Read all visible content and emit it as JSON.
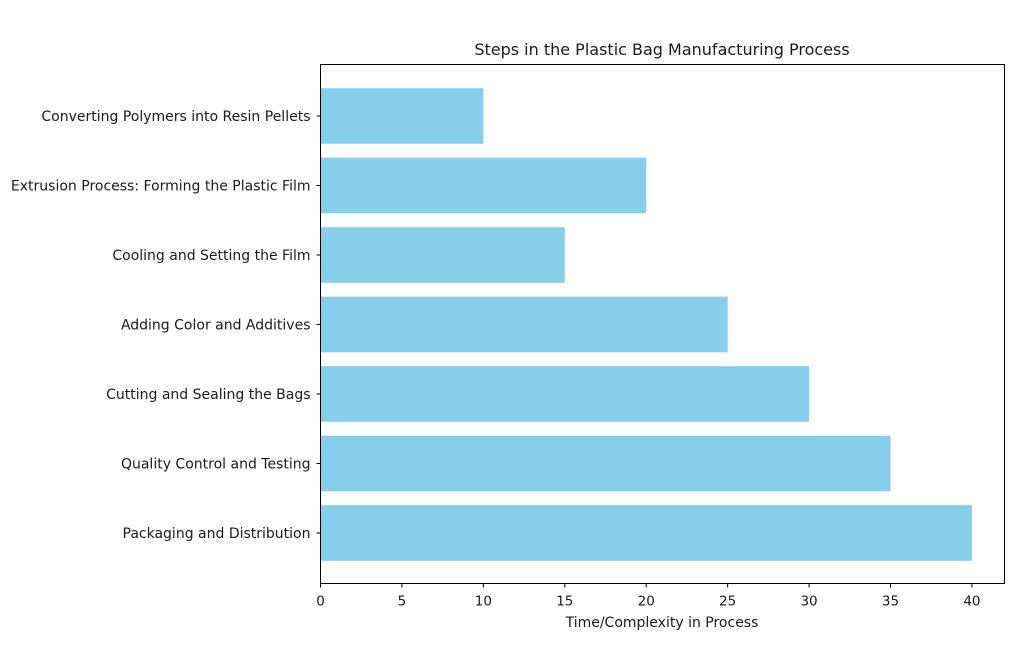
{
  "chart_data": {
    "type": "bar",
    "orientation": "horizontal",
    "title": "Steps in the Plastic Bag Manufacturing Process",
    "xlabel": "Time/Complexity in Process",
    "ylabel": "",
    "xlim": [
      0,
      42
    ],
    "xticks": [
      0,
      5,
      10,
      15,
      20,
      25,
      30,
      35,
      40
    ],
    "categories": [
      "Converting Polymers into Resin Pellets",
      "Extrusion Process: Forming the Plastic Film",
      "Cooling and Setting the Film",
      "Adding Color and Additives",
      "Cutting and Sealing the Bags",
      "Quality Control and Testing",
      "Packaging and Distribution"
    ],
    "values": [
      10,
      20,
      15,
      25,
      30,
      35,
      40
    ],
    "bar_color": "#87ceeb",
    "grid": false,
    "legend": false
  }
}
